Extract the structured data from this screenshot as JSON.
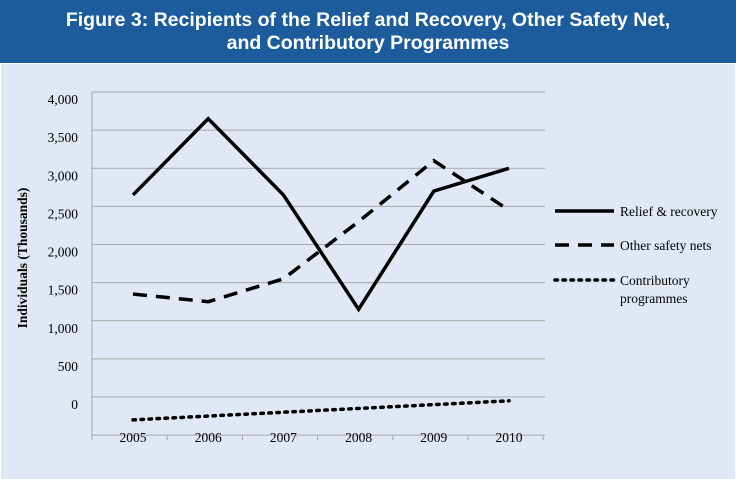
{
  "header": {
    "title_line1": "Figure 3: Recipients of the Relief and Recovery, Other Safety Net,",
    "title_line2": "and Contributory Programmes"
  },
  "colors": {
    "header_bg": "#1c5c9c",
    "panel_bg": "#dfe8f4",
    "line": "#000000",
    "grid": "#a6a6a6"
  },
  "chart_data": {
    "type": "line",
    "title": "Figure 3: Recipients of the Relief and Recovery, Other Safety Net, and Contributory Programmes",
    "xlabel": "",
    "ylabel": "Individuals (Thousands)",
    "categories": [
      "2005",
      "2006",
      "2007",
      "2008",
      "2009",
      "2010"
    ],
    "ylim": [
      0,
      4000
    ],
    "yticks": [
      "0",
      "500",
      "1,000",
      "1,500",
      "2,000",
      "2,500",
      "3,000",
      "3,500",
      "4,000"
    ],
    "grid": "horizontal",
    "legend_position": "right",
    "series": [
      {
        "name": "Relief & recovery",
        "style": "solid",
        "values": [
          2650,
          3650,
          2650,
          1150,
          2700,
          3000
        ]
      },
      {
        "name": "Other safety nets",
        "style": "dashed",
        "values": [
          1350,
          1250,
          1550,
          2300,
          3100,
          2450
        ]
      },
      {
        "name": "Contributory programmes",
        "style": "dotted",
        "label_lines": [
          "Contributory",
          "programmes"
        ],
        "values": [
          -300,
          -250,
          -200,
          -150,
          -100,
          -50
        ]
      }
    ]
  }
}
